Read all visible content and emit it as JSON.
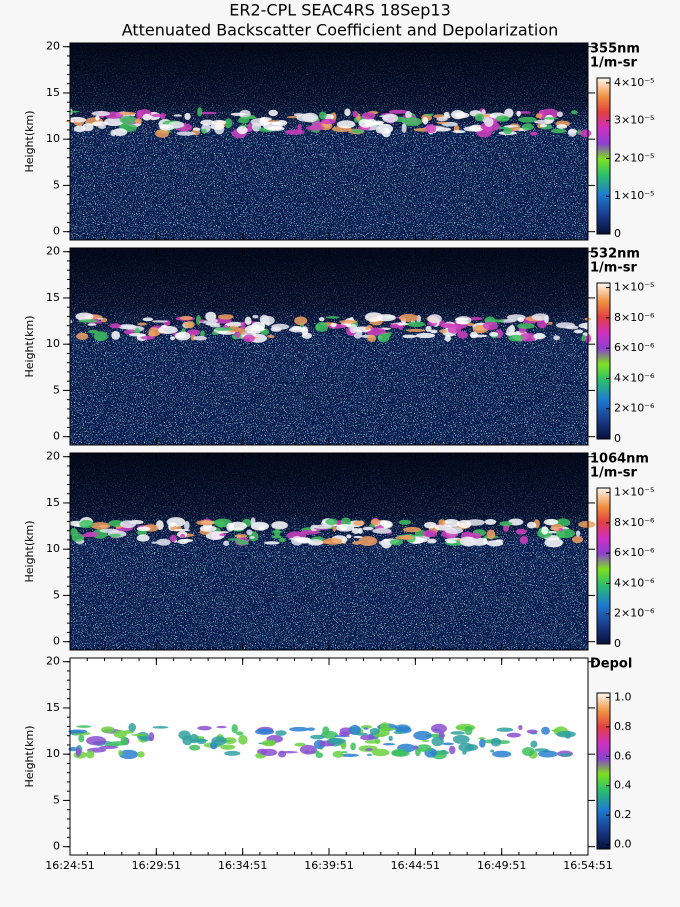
{
  "title": [
    "ER2-CPL SEAC4RS 18Sep13",
    "Attenuated Backscatter Coefficient and Depolarization"
  ],
  "chart_data": [
    {
      "type": "heatmap",
      "ylabel": "Height(km)",
      "ylim": [
        -0.9,
        20.4
      ],
      "yticks": [
        0,
        5,
        10,
        15,
        20
      ],
      "colorbar_label": [
        "355nm",
        "1/m-sr"
      ],
      "clim": [
        0,
        4.13e-05
      ],
      "cticks": [
        0,
        {
          "value": 1e-05,
          "label": "1×10⁻⁵"
        },
        {
          "value": 2e-05,
          "label": "2×10⁻⁵"
        },
        {
          "value": 3e-05,
          "label": "3×10⁻⁵"
        },
        {
          "value": 4e-05,
          "label": "4×10⁻⁵"
        }
      ]
    },
    {
      "type": "heatmap",
      "ylabel": "Height(km)",
      "ylim": [
        -0.9,
        20.4
      ],
      "yticks": [
        0,
        5,
        10,
        15,
        20
      ],
      "colorbar_label": [
        "532nm",
        "1/m-sr"
      ],
      "clim": [
        0,
        1.03e-05
      ],
      "cticks": [
        0,
        {
          "value": 2e-06,
          "label": "2×10⁻⁶"
        },
        {
          "value": 4e-06,
          "label": "4×10⁻⁶"
        },
        {
          "value": 6e-06,
          "label": "6×10⁻⁶"
        },
        {
          "value": 8e-06,
          "label": "8×10⁻⁶"
        },
        {
          "value": 1e-05,
          "label": "1×10⁻⁵"
        }
      ]
    },
    {
      "type": "heatmap",
      "ylabel": "Height(km)",
      "ylim": [
        -0.9,
        20.4
      ],
      "yticks": [
        0,
        5,
        10,
        15,
        20
      ],
      "colorbar_label": [
        "1064nm",
        "1/m-sr"
      ],
      "clim": [
        0,
        1.03e-05
      ],
      "cticks": [
        0,
        {
          "value": 2e-06,
          "label": "2×10⁻⁶"
        },
        {
          "value": 4e-06,
          "label": "4×10⁻⁶"
        },
        {
          "value": 6e-06,
          "label": "6×10⁻⁶"
        },
        {
          "value": 8e-06,
          "label": "8×10⁻⁶"
        },
        {
          "value": 1e-05,
          "label": "1×10⁻⁵"
        }
      ]
    },
    {
      "type": "heatmap",
      "ylabel": "Height(km)",
      "ylim": [
        -0.9,
        20.4
      ],
      "yticks": [
        0,
        5,
        10,
        15,
        20
      ],
      "colorbar_label": [
        "Depol"
      ],
      "clim": [
        -0.03,
        1.03
      ],
      "cticks": [
        {
          "value": 0,
          "label": "0.0"
        },
        0.2,
        0.4,
        0.6,
        0.8,
        {
          "value": 1,
          "label": "1.0"
        }
      ],
      "xticks": [
        "16:24:51",
        "16:29:51",
        "16:34:51",
        "16:39:51",
        "16:44:51",
        "16:49:51",
        "16:54:51"
      ]
    }
  ]
}
